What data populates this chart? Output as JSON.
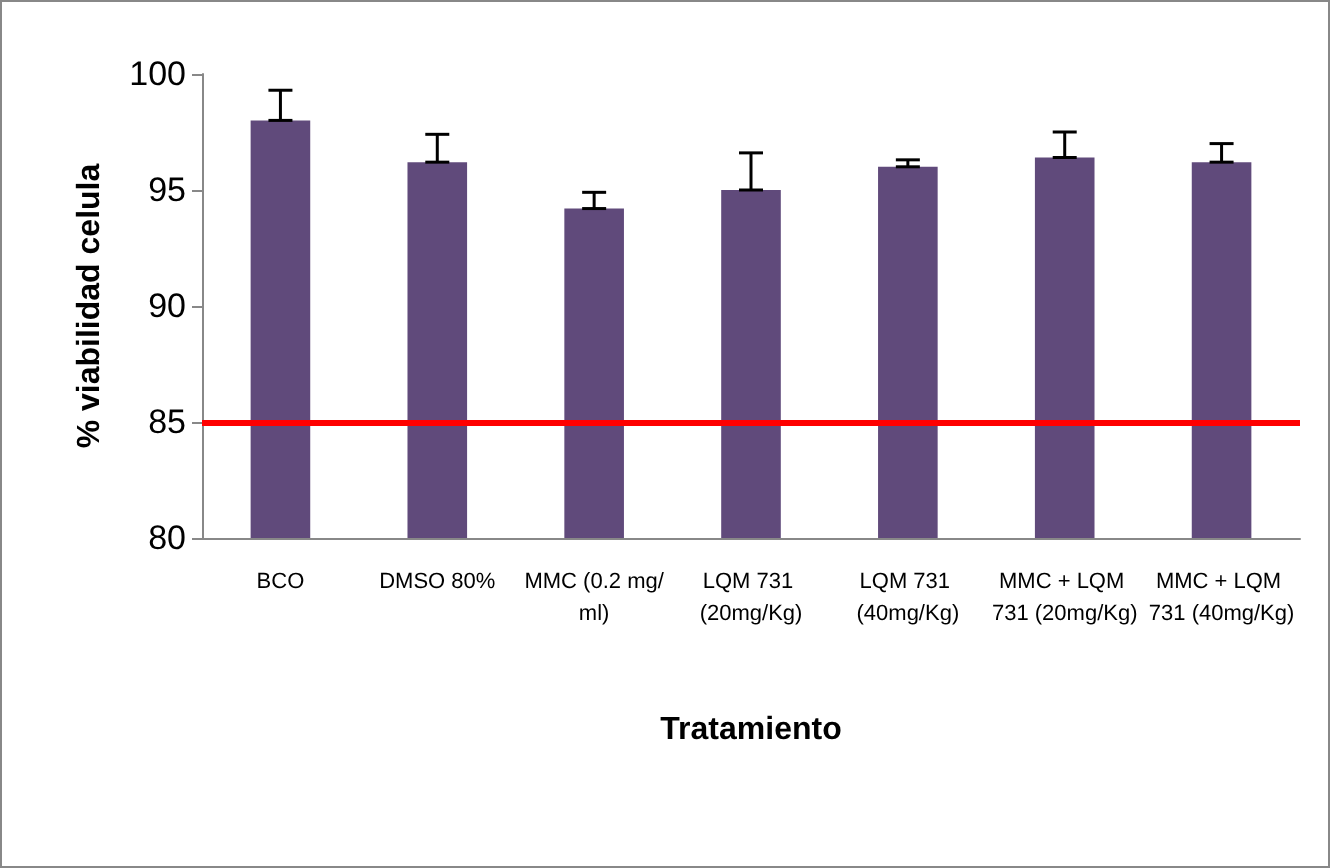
{
  "chart_data": {
    "type": "bar",
    "xlabel": "Tratamiento",
    "ylabel": "% viabilidad celula",
    "categories": [
      "BCO",
      "DMSO 80%",
      "MMC (0.2 mg/ml)",
      "LQM 731 (20mg/Kg)",
      "LQM 731 (40mg/Kg)",
      "MMC + LQM 731 (20mg/Kg)",
      "MMC + LQM 731 (40mg/Kg)"
    ],
    "values": [
      98,
      96.2,
      94.2,
      95,
      96,
      96.4,
      96.2
    ],
    "errors": [
      [
        98,
        99.3
      ],
      [
        96.2,
        97.4
      ],
      [
        94.2,
        94.9
      ],
      [
        95,
        96.6
      ],
      [
        96,
        96.3
      ],
      [
        96.4,
        97.5
      ],
      [
        96.2,
        97
      ]
    ],
    "color": "#604a7b",
    "ylim": [
      80,
      100
    ],
    "yticks": [
      80,
      85,
      90,
      95,
      100
    ],
    "grid": false,
    "ref_lines": [
      {
        "axis": "y",
        "value": 85,
        "color": "#ff0000"
      }
    ]
  }
}
